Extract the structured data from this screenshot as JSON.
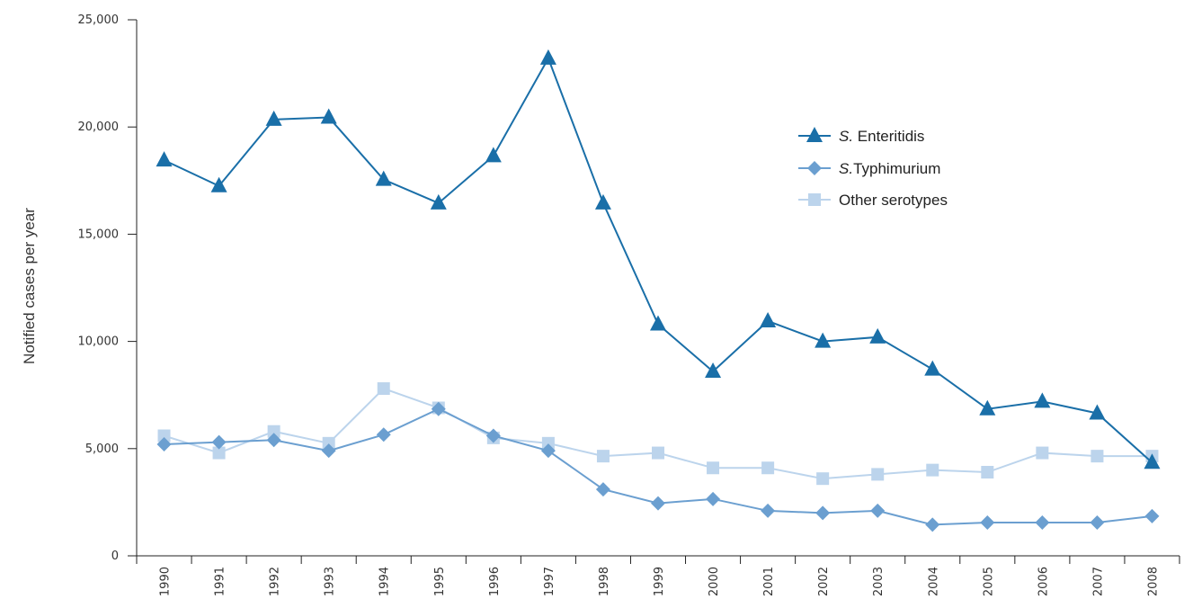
{
  "chart_data": {
    "type": "line",
    "title": "",
    "xlabel": "",
    "ylabel": "Notified cases per year",
    "ylim": [
      0,
      25000
    ],
    "yticks": [
      0,
      5000,
      10000,
      15000,
      20000,
      25000
    ],
    "ytick_labels": [
      "0",
      "5,000",
      "10,000",
      "15,000",
      "20,000",
      "25,000"
    ],
    "grid": false,
    "legend_position": "upper-right",
    "categories": [
      "1990",
      "1991",
      "1992",
      "1993",
      "1994",
      "1995",
      "1996",
      "1997",
      "1998",
      "1999",
      "2000",
      "2001",
      "2002",
      "2003",
      "2004",
      "2005",
      "2006",
      "2007",
      "2008"
    ],
    "series": [
      {
        "name_prefix": "S.",
        "name_rest": " Enteritidis",
        "marker": "triangle",
        "color": "#1a6fa8",
        "values": [
          18450,
          17250,
          20350,
          20450,
          17550,
          16450,
          18650,
          23200,
          16450,
          10800,
          8600,
          10950,
          10000,
          10200,
          8700,
          6850,
          7200,
          6650,
          4350
        ]
      },
      {
        "name_prefix": "S.",
        "name_rest": "Typhimurium",
        "marker": "diamond",
        "color": "#6b9fd0",
        "values": [
          5200,
          5300,
          5400,
          4900,
          5650,
          6850,
          5600,
          4900,
          3100,
          2450,
          2650,
          2100,
          2000,
          2100,
          1450,
          1550,
          1550,
          1550,
          1850
        ]
      },
      {
        "name_prefix": "",
        "name_rest": "Other serotypes",
        "marker": "square",
        "color": "#bcd4ec",
        "values": [
          5600,
          4800,
          5800,
          5250,
          7800,
          6900,
          5500,
          5250,
          4650,
          4800,
          4100,
          4100,
          3600,
          3800,
          4000,
          3900,
          4800,
          4650,
          4650
        ]
      }
    ]
  }
}
